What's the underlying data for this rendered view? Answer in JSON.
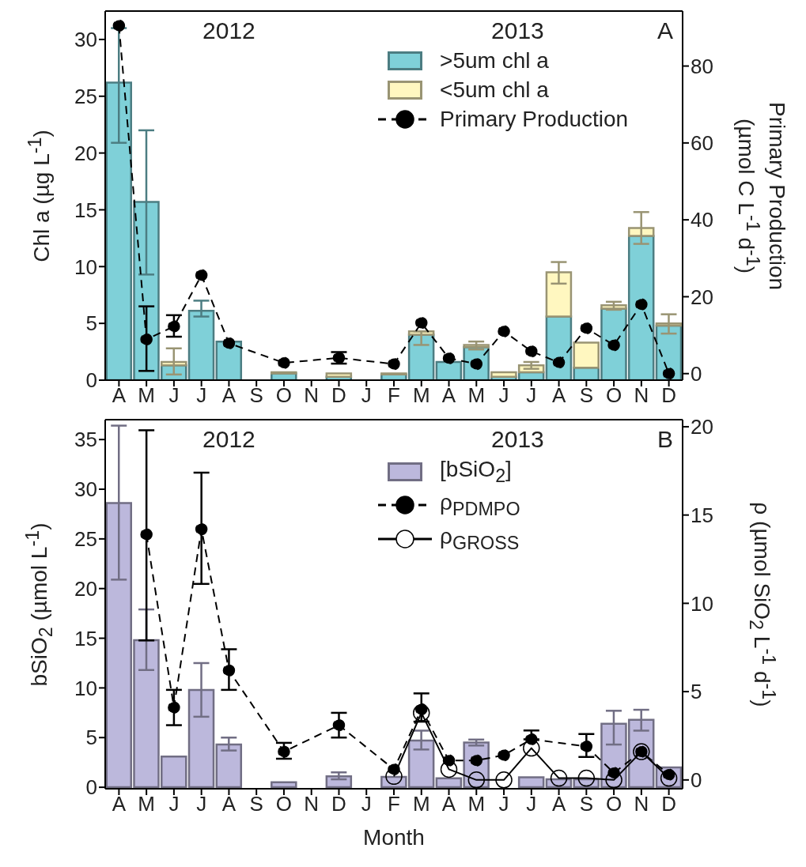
{
  "chart_data": [
    {
      "type": "bar",
      "stacked": true,
      "ylabel": "Chl a (µg L$^{-1}$)",
      "y2label": "Primary Production\n(µmol C L$^{-1}$ d$^{-1}$)",
      "annotations": [
        "2012",
        "2013",
        "A"
      ],
      "legend": "top right",
      "categories": [
        "A",
        "M",
        "J",
        "J",
        "A",
        "S",
        "O",
        "N",
        "D",
        "J",
        "F",
        "M",
        "A",
        "M",
        "J",
        "J",
        "A",
        "S",
        "O",
        "N",
        "D"
      ],
      "ylim": [
        0,
        32.5
      ],
      "yticks": [
        0,
        5,
        10,
        15,
        20,
        25,
        30
      ],
      "y2lim": [
        -1.7,
        94.3
      ],
      "y2ticks": [
        0,
        20,
        40,
        60,
        80
      ],
      "series": [
        {
          "name": ">5um chl a",
          "color": "#7fd0d8",
          "values": [
            26.2,
            15.7,
            1.3,
            6.1,
            3.4,
            null,
            0.6,
            null,
            0.3,
            null,
            0.5,
            4.0,
            1.6,
            2.9,
            0.3,
            0.7,
            5.6,
            1.1,
            6.3,
            12.7,
            4.8
          ],
          "errors": [
            [
              20.9,
              31
            ],
            [
              9.3,
              22.0
            ],
            null,
            [
              5.6,
              7.0
            ],
            null,
            null,
            null,
            null,
            null,
            null,
            null,
            null,
            null,
            null,
            null,
            null,
            null,
            null,
            null,
            null,
            null
          ]
        },
        {
          "name": "<5um chl a",
          "color": "#fff7c0",
          "values": [
            null,
            null,
            0.3,
            null,
            null,
            null,
            0.1,
            null,
            0.3,
            null,
            0.1,
            0.3,
            null,
            0.2,
            0.4,
            0.6,
            3.9,
            2.2,
            0.3,
            0.7,
            0.2
          ],
          "errors": [
            null,
            null,
            [
              0.5,
              2.8
            ],
            null,
            null,
            null,
            null,
            null,
            null,
            null,
            null,
            [
              3.1,
              4.3
            ],
            null,
            [
              2.7,
              3.4
            ],
            null,
            [
              1.0,
              1.6
            ],
            [
              8.5,
              10.4
            ],
            null,
            [
              6.2,
              6.9
            ],
            [
              12.0,
              14.8
            ],
            [
              4.1,
              5.8
            ]
          ]
        },
        {
          "type": "line",
          "name": "Primary Production",
          "axis": "y2",
          "color": "#000000",
          "marker": "circle",
          "line_style": "dashed",
          "values": [
            90.5,
            8.9,
            12.3,
            25.6,
            7.9,
            null,
            2.8,
            null,
            4.1,
            null,
            2.5,
            13.2,
            4.0,
            2.5,
            11.0,
            5.8,
            2.9,
            11.8,
            7.4,
            18.0,
            0.0
          ],
          "errors": [
            null,
            [
              0.7,
              17.5
            ],
            [
              9.6,
              15.2
            ],
            null,
            null,
            null,
            null,
            null,
            [
              2.6,
              5.6
            ],
            null,
            null,
            null,
            null,
            null,
            null,
            null,
            null,
            null,
            null,
            null,
            null
          ]
        }
      ]
    },
    {
      "type": "bar",
      "xlabel": "Month",
      "ylabel": "bSiO$_{2}$ (µmol L$^{-1}$)",
      "y2label": "ρ (µmol SiO$_{2}$ L$^{-1}$ d$^{-1}$)",
      "annotations": [
        "2012",
        "2013",
        "B"
      ],
      "legend": "top right",
      "categories": [
        "A",
        "M",
        "J",
        "J",
        "A",
        "S",
        "O",
        "N",
        "D",
        "J",
        "F",
        "M",
        "A",
        "M",
        "J",
        "J",
        "A",
        "S",
        "O",
        "N",
        "D"
      ],
      "ylim": [
        -0.15,
        37
      ],
      "yticks": [
        0,
        5,
        10,
        15,
        20,
        25,
        30,
        35
      ],
      "y2lim": [
        -0.5,
        20.4
      ],
      "y2ticks": [
        0,
        5,
        10,
        15,
        20
      ],
      "series": [
        {
          "name": "[bSiO$_{2}$]",
          "color": "#bcb8dc",
          "values": [
            28.6,
            14.8,
            3.1,
            9.8,
            4.3,
            null,
            0.5,
            null,
            1.1,
            null,
            1.05,
            4.7,
            0.9,
            4.5,
            null,
            1.0,
            0.8,
            0.8,
            6.4,
            6.8,
            2.0
          ],
          "errors": [
            [
              20.9,
              36.4
            ],
            [
              11.8,
              17.9
            ],
            null,
            [
              7.1,
              12.5
            ],
            [
              3.7,
              5.0
            ],
            null,
            null,
            null,
            [
              0.8,
              1.5
            ],
            null,
            null,
            [
              3.8,
              5.7
            ],
            null,
            [
              4.2,
              4.8
            ],
            null,
            null,
            null,
            null,
            [
              4.3,
              7.7
            ],
            [
              5.7,
              7.8
            ],
            null
          ]
        },
        {
          "type": "line",
          "name": "ρ$_{PDMPO}$",
          "axis": "y2",
          "color": "#000000",
          "marker": "circle",
          "line_style": "dashed",
          "values": [
            null,
            13.9,
            4.1,
            14.2,
            6.2,
            null,
            1.6,
            null,
            3.1,
            null,
            0.6,
            4.0,
            1.1,
            1.1,
            1.4,
            2.3,
            null,
            1.9,
            0.4,
            1.6,
            0.3
          ],
          "errors": [
            null,
            [
              7.9,
              19.8
            ],
            [
              3.1,
              5.1
            ],
            [
              11.1,
              17.4
            ],
            [
              5.1,
              7.4
            ],
            null,
            [
              1.2,
              2.1
            ],
            null,
            [
              2.4,
              3.8
            ],
            null,
            null,
            [
              3.3,
              4.9
            ],
            null,
            null,
            null,
            [
              2.3,
              2.8
            ],
            null,
            [
              1.3,
              2.6
            ],
            null,
            null,
            null
          ]
        },
        {
          "type": "line",
          "name": "ρ$_{GROSS}$",
          "axis": "y2",
          "color": "#000000",
          "marker": "circle",
          "line_style": "solid",
          "values": [
            null,
            null,
            null,
            null,
            null,
            null,
            null,
            null,
            null,
            null,
            0.2,
            3.8,
            0.6,
            0,
            0,
            1.8,
            0.1,
            0.1,
            0,
            1.6,
            0.1
          ]
        }
      ]
    }
  ]
}
